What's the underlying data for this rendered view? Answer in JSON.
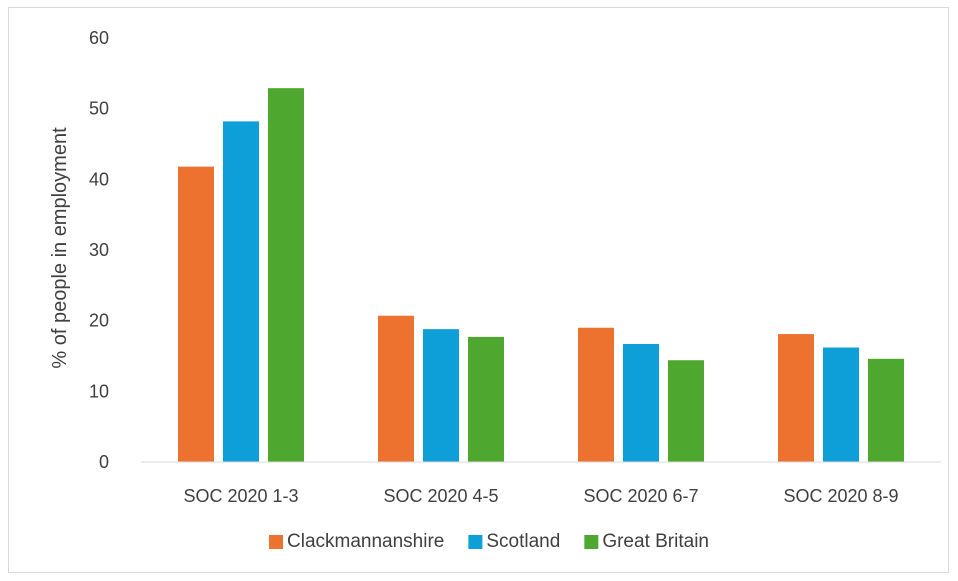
{
  "chart_data": {
    "type": "bar",
    "title": "",
    "xlabel": "",
    "ylabel": "% of people in employment",
    "categories": [
      "SOC 2020 1-3",
      "SOC 2020 4-5",
      "SOC 2020 6-7",
      "SOC 2020 8-9"
    ],
    "series": [
      {
        "name": "Clackmannanshire",
        "color": "#ED7230",
        "values": [
          41.8,
          20.7,
          19.0,
          18.1
        ]
      },
      {
        "name": "Scotland",
        "color": "#0E9FD8",
        "values": [
          48.2,
          18.8,
          16.7,
          16.2
        ]
      },
      {
        "name": "Great Britain",
        "color": "#4EA72E",
        "values": [
          52.9,
          17.7,
          14.4,
          14.6
        ]
      }
    ],
    "ylim": [
      0,
      60
    ],
    "yticks": [
      0,
      10,
      20,
      30,
      40,
      50,
      60
    ],
    "grid": false,
    "legend_position": "bottom"
  }
}
